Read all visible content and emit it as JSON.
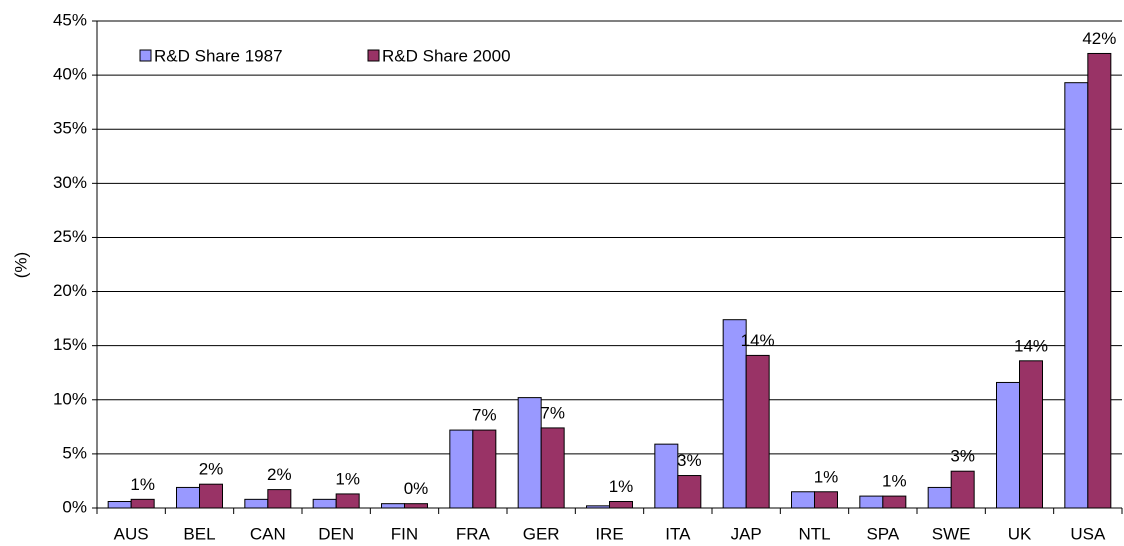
{
  "chart_data": {
    "type": "bar",
    "y_label": "(%)",
    "categories": [
      "AUS",
      "BEL",
      "CAN",
      "DEN",
      "FIN",
      "FRA",
      "GER",
      "IRE",
      "ITA",
      "JAP",
      "NTL",
      "SPA",
      "SWE",
      "UK",
      "USA"
    ],
    "series": [
      {
        "name": "R&D Share 1987",
        "color": "#9999ff",
        "values": [
          0.6,
          1.9,
          0.8,
          0.8,
          0.4,
          7.2,
          10.2,
          0.2,
          5.9,
          17.4,
          1.5,
          1.1,
          1.9,
          11.6,
          39.3
        ]
      },
      {
        "name": "R&D Share 2000",
        "color": "#993366",
        "values": [
          0.8,
          2.2,
          1.7,
          1.3,
          0.4,
          7.2,
          7.4,
          0.6,
          3.0,
          14.1,
          1.5,
          1.1,
          3.4,
          13.6,
          42.0
        ],
        "value_labels": [
          "1%",
          "2%",
          "2%",
          "1%",
          "0%",
          "7%",
          "7%",
          "1%",
          "3%",
          "14%",
          "1%",
          "1%",
          "3%",
          "14%",
          "42%"
        ]
      }
    ],
    "ylim": [
      0,
      45
    ],
    "yticks": [
      {
        "value": 0,
        "label": "0%"
      },
      {
        "value": 5,
        "label": "5%"
      },
      {
        "value": 10,
        "label": "10%"
      },
      {
        "value": 15,
        "label": "15%"
      },
      {
        "value": 20,
        "label": "20%"
      },
      {
        "value": 25,
        "label": "25%"
      },
      {
        "value": 30,
        "label": "30%"
      },
      {
        "value": 35,
        "label": "35%"
      },
      {
        "value": 40,
        "label": "40%"
      },
      {
        "value": 45,
        "label": "45%"
      }
    ],
    "grid": true,
    "legend": "upper-left"
  }
}
